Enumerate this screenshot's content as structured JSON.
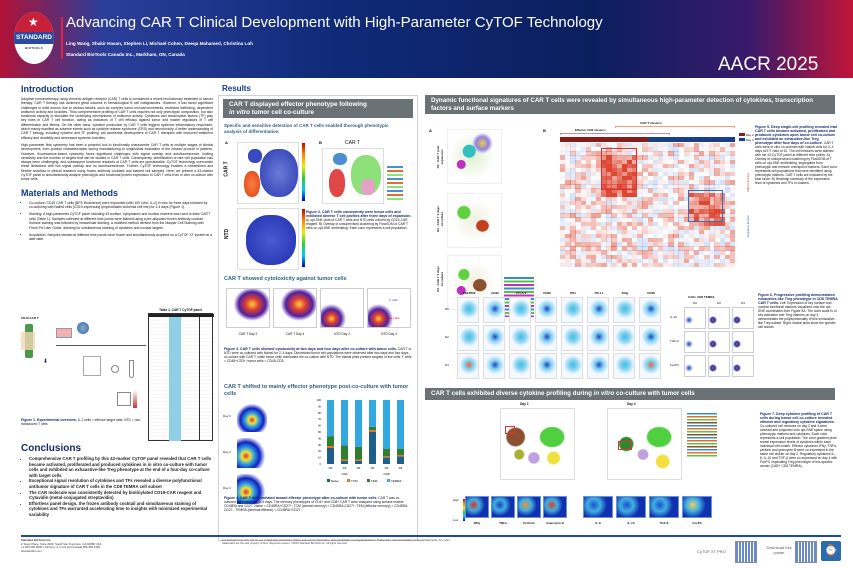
{
  "header": {
    "logo": {
      "text": "STANDARD",
      "subtext": "BIOTOOLS"
    },
    "title": "Advancing CAR T Clinical Development with High-Parameter CyTOF Technology",
    "authors": "Ling Wang, Shakir Hasan, Stephen Li, Michael Cohen, Deeqa Mahamed, Christina Loh",
    "affiliation": "Standard BioTools Canada Inc., Markham, ON, Canada",
    "conference": "AACR 2025"
  },
  "introduction": {
    "heading": "Introduction",
    "p1": "Adoptive immunotherapy using chimeric antigen receptor (CAR) T cells is considered a recent revolutionary treatment in cancer therapy. CAR T therapy has achieved great success in hematological B cell malignancies. However, it has faced significant challenges in solid tumors due to various factors, such as complex tumor microenvironments, restricted trafficking, dependent antitumor activity and toxicities. Thus comprehensive profiling of CAR T cells requires not only phenotypic composition, but also functional capacity to elucidate the underlying mechanisms of antitumor activity. Cytokines and transcription factors (TF) play key roles in CAR T cell function, acting as indicators of T cell efficacy against tumor and master regulators of T cell differentiation and fitness. On the other hand, cytokine production by CAR T cells triggers systemic inflammatory responses, which mainly manifest as adverse events such as cytokine release syndrome (CRS) and neurotoxicity. A better understanding of CAR T biology, including cytokine and TF profiling, will accelerate development of CAR T therapies with improved antitumor efficacy and durability and decreased systemic toxicities.",
    "p2": "High-parameter flow cytometry has been a powerful tool to functionally characterize CAR T cells at multiple stages of clinical development, from product characterization during manufacturing to longitudinal evaluation of the infused product in patients. However, fluorescence-based cytometry faces significant challenges with signal overlap and autofluorescence, limiting sensitivity and the number of targets that can be studied in CAR T cells. Consequently, identification of rare cell population has always been challenging, and subsequent functional readouts of CAR T cells are questionable. CyTOF technology overcomes these limitations with low signal overlap and no autofluorescence. Further, CyTOF technology enables a streamlined and flexible workflow in clinical research using frozen antibody cocktails and stained cell samples. Here, we present a 43-marker CyTOF panel to simultaneously analyze phenotypic and functional protein expression in CAR T cells from in vitro co-culture with tumor cells."
  },
  "methods": {
    "heading": "Materials and Methods",
    "bullets": [
      "Co-culture: CD19 CAR T cells (BPS Bioscience) were expanded (with 100 U/mL IL-2) in vitro for three days followed by co-culturing with Nalm6 cells (CD19-expressing lymphoblastic leukemia cell line) for 2-4 days (Figure 1).",
      "Staining: A high-parameter CyTOF panel including 43 surface, cytoplasmic and nuclear markers was used to stain CAR T cells (Table 1). Samples collected at different time points were stained using a pre-aliquoted frozen antibody cocktail. Surface staining was followed by intracellular staining, a modified method derived from the Maxpar Cell Staining with Fresh Pix User Guide, allowing for simultaneous staining of cytokines and nuclear targets.",
      "Acquisition: Samples stained at different time points were frozen and simultaneously acquired on a CyTOF XT system at a later date."
    ],
    "figure_caption_title": "Figure 1. Experimental overview.",
    "figure_caption": "IL-2 cells = effector target ratio; NTD = non-transduced T cells",
    "table_title": "Table 1. CAR T CyTOF panel",
    "diagram_label": "CD19 CAR T"
  },
  "conclusions": {
    "heading": "Conclusions",
    "bullets": [
      "Comprehensive CAR T profiling by this 43-marker CyTOF panel revealed that CAR T cells became activated, proliferated and produced cytokines in in vitro co-culture with tumor cells and exhibited an exhaustive-like Treg phenotype at the end of a four-day co-culture with target cells",
      "Exceptional signal resolution of cytokines and TFs revealed a diverse polyfunctional antitumor signature of CAR T cells in the CD8 TEMRA cell subset",
      "The CAR molecule was consistently detected by biotinylated CD19-CAR reagent and Cytavidin (metal-conjugated streptavidin)",
      "Effortless panel design, the frozen antibody cocktail and simultaneous staining of cytokines and TFs warranted accelerating time to insights with minimized experimental variability"
    ]
  },
  "footer": {
    "company": "Standard BioTools Inc.",
    "address": "2 Tower Place, Suite 2000, South San Francisco, CA 94080 USA",
    "phone": "+1 650 266 6000 • Toll-free +1 in US and Canada 866 359 4354",
    "web": "standardbio.com",
    "legal": "For Research Use Only. Not for use in diagnostic procedures. Patent and License Information: www.standardbio.com/legal/salesterms. Trademarks: www.standardbio.com/legal/trademarks. Any other trademarks are the sole property of their respective owners. ©2025 Standard BioTools Inc. All rights reserved.",
    "qr_label_1": "CyTOF XT PRO",
    "qr_label_2": "Download this poster"
  },
  "results": {
    "heading": "Results",
    "s1": {
      "title": "CAR T displayed effector phenotype following",
      "title_italic": "in vitro",
      "title_rest": "tumor cell co-culture",
      "sub1": "Specific and sensitive detection of CAR T cells enabled thorough phenotypic analysis of differentiation",
      "panel_a": "A",
      "panel_b": "B",
      "row1": "CAR T",
      "row2": "NTD",
      "b_title": "CAR T",
      "fig2_title": "Figure 2. CAR T cells consistently were tumor cells and exhibited diverse T cell profiles after three days of expansion.",
      "fig2_text": "A) opt-SNE plots of CAR T cells and NTD cells colored by CD19-CAR reagent. B) Overlay of unsupervised clustering by FlowSOM of CAR T cells on opt-SNE embedding. Each color represents a cell population.",
      "sub2": "CAR T showed cytotoxicity against tumor cells",
      "plots": [
        "CAR T Day 2",
        "CAR T Day 4",
        "NTD Day 2",
        "NTD Day 4"
      ],
      "gate_t": "T cells",
      "gate_tumor": "Tumor cells",
      "fig3_title": "Figure 3. CAR T cells showed cytotoxicity at two days and four days after co-culture with tumor cells.",
      "fig3_text": "CAR T or NTD were co-cultured with Nalm6 for 2–4 days. Diminished tumor cell populations were observed after two days and four days co-culture with CAR T, while tumor cells dominated the co-culture with NTD. The biaxial plots present singlets of live cells. T cells = CD45+CD3+; tumor cells = CD45-CD3-.",
      "sub3": "CAR T shifted to mainly effector phenotype post-co-culture with tumor cells",
      "days": [
        "Day 0",
        "Day 2",
        "Day 4"
      ],
      "fig4_title": "Figure 4. CAR T differentiated toward effector phenotype after co-culture with tumor cells.",
      "fig4_text": "CAR T was co-cultured with Nalm6 for 2–4 days. The memory phenotypes of CD4+ and CD8+ CAR T were analyzed using surface marker CD45RA and CD27. Naive = CD45RA+CD27+; TCM (central memory) = CD45RA-CD27+; TEM (effector memory) = CD45RA-CD27-; TEMRA (terminal effector) = CD45RA+CD27-."
    },
    "s2": {
      "title": "Dynamic functional signatures of CAR T cells were revealed by simultaneous high-parameter detection of cytokines, transcription factors and surface markers",
      "panel_a": "A",
      "panel_b": "B",
      "rows": [
        "D0 - CAR T post expansion",
        "D2 - CAR T 2 days co-culture",
        "D4 - CAR T 4 days co-culture"
      ],
      "heat_top1": "Effector CD8 clusters",
      "heat_top2": "CAR T clusters",
      "legend": [
        "Day 2",
        "Day 4"
      ],
      "side_red": "Effector function",
      "side_blue": "Regulatory function",
      "scale_high": "High",
      "scale_low": "Low",
      "fig5_title": "Figure 5. Deep single-cell profiling revealed that CAR T cells became activated, proliferated and produced cytokines upon tumor cell co-culture and exhibited an exhaustive-like Treg phenotype after four days of co-culture.",
      "fig5_text": "CAR T cells were in vitro co-cultured with Nalm6 cells for 2–4 days at E:T ratio of 10. The cell mixtures were stained with the 43-CyTOF panel at different time points. A) Overlay of unsupervised clustering by FlowSOM of T cells on opt-SNE embedding, segregated from phenotypic and immune checkpoint markers. Each color represents cell populations that were identified using phenotypic markers. CAR T cells are indicated by the blue circle. B) Heatmap summary of the expression level of cytokines and TFs in clusters.",
      "markers": [
        "PD1/PD9",
        "CD39",
        "CTLA-4",
        "CD69",
        "PD1",
        "PD-L1",
        "IFNg",
        "CD38"
      ],
      "time_rows": [
        "D0",
        "D2",
        "D4"
      ],
      "gate_title": "CAR+ CD8 TEMRA",
      "gate_cols": [
        "D0",
        "D2",
        "D4"
      ],
      "gate_rows": [
        "IL-10",
        "TGF-β",
        "FoxP3"
      ],
      "fig6_title": "Figure 6. Progressive profiling demonstrated exhaustive-like Treg phenotype in CD8 TEMRA CAR T cells.",
      "fig6_text": "Left: Expression of key surface and nuclear functional markers visualized onto the opt-SNE coordinates from Figure 5A. The color scale is of key activation and Treg markers on day 4 demonstrates the polyfunctionality of this exhaustive-like Treg subset. Right: biaxial plots show the specific cell subset."
    },
    "s3": {
      "title": "CAR T cells exhibited diverse cytokine profiling during",
      "title_italic": "in vitro",
      "title_rest": "co-culture with tumor cells",
      "day_a": "Day 2",
      "day_b": "Day 4",
      "insets_a": [
        "IFNγ",
        "TNFα",
        "Perforin",
        "Granzyme B"
      ],
      "insets_b": [
        "IL-8",
        "IL-10",
        "TGF-β",
        "FoxP3"
      ],
      "scale_high": "High",
      "scale_low": "Low",
      "fig7_title": "Figure 7. Deep cytokine profiling of CAR T cells during tumor cell co-culture revealed effector and regulatory cytokine signatures.",
      "fig7_text": "Co-cultured cell mixtures on day 2 and 4 were overlaid and projected onto opt-SNE space using phenotypic markers and cytokines. Each color represents a cell population. The color gradient plots reveal expression levels of cytokines within each individual cell cluster. Effector cytokines IFNγ, TNFα, perforin and granzyme B were co-expressed in the same cell cluster on day 2. Regulatory cytokines IL-8, IL-10 and TGF-β were co-expressed on day 4 with FoxP3, implicating Treg phenotype of this specific cluster (CAR+ CD8 TEMRA)."
    }
  },
  "chart_data": {
    "type": "bar",
    "stacked": true,
    "categories": [
      "D0",
      "D2",
      "D4",
      "D0",
      "D2",
      "D4"
    ],
    "groups": [
      "CD4",
      "CD8"
    ],
    "ylim": [
      0,
      100
    ],
    "yticks": [
      0,
      10,
      20,
      30,
      40,
      50,
      60,
      70,
      80,
      90,
      100
    ],
    "series": [
      {
        "name": "Naive",
        "color": "#1f5f8b",
        "values": [
          25,
          5,
          5,
          50,
          10,
          12
        ]
      },
      {
        "name": "TCM",
        "color": "#f07020",
        "values": [
          3,
          2,
          2,
          3,
          2,
          2
        ]
      },
      {
        "name": "TEM",
        "color": "#2f7f2f",
        "values": [
          15,
          22,
          20,
          5,
          12,
          10
        ]
      },
      {
        "name": "TEMRA",
        "color": "#32a8e0",
        "values": [
          57,
          71,
          73,
          42,
          76,
          76
        ]
      }
    ],
    "legend": "bottom"
  },
  "colors": {
    "navy": "#14296a",
    "accent": "#123a8c",
    "section_bar": "#6a7276",
    "red": "#e0223f"
  }
}
